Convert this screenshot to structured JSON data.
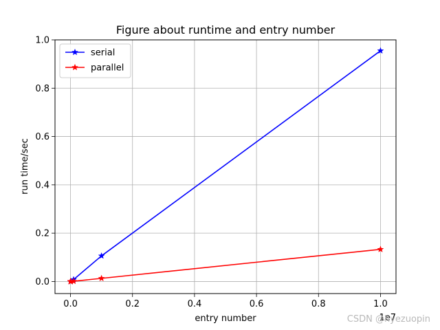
{
  "chart_data": {
    "type": "line",
    "title": "Figure about runtime and entry number",
    "xlabel": "entry number",
    "ylabel": "run time/sec",
    "x_offset_label": "1e7",
    "xlim": [
      -0.05,
      1.05
    ],
    "ylim": [
      -0.05,
      1.0
    ],
    "x_ticks": [
      0.0,
      0.2,
      0.4,
      0.6,
      0.8,
      1.0
    ],
    "x_tick_labels": [
      "0.0",
      "0.2",
      "0.4",
      "0.6",
      "0.8",
      "1.0"
    ],
    "y_ticks": [
      0.0,
      0.2,
      0.4,
      0.6,
      0.8,
      1.0
    ],
    "y_tick_labels": [
      "0.0",
      "0.2",
      "0.4",
      "0.6",
      "0.8",
      "1.0"
    ],
    "grid": true,
    "legend_position": "top-left",
    "series": [
      {
        "name": "serial",
        "color": "#0000ff",
        "marker": "star",
        "x": [
          0.0,
          0.0001,
          0.001,
          0.01,
          0.1,
          1.0
        ],
        "y": [
          0.0,
          0.0,
          0.0,
          0.008,
          0.106,
          0.955
        ]
      },
      {
        "name": "parallel",
        "color": "#ff0000",
        "marker": "star",
        "x": [
          0.0,
          0.0001,
          0.001,
          0.01,
          0.1,
          1.0
        ],
        "y": [
          0.0,
          0.0,
          0.0,
          0.001,
          0.013,
          0.133
        ]
      }
    ]
  },
  "watermark": "CSDN @hyezuopin"
}
